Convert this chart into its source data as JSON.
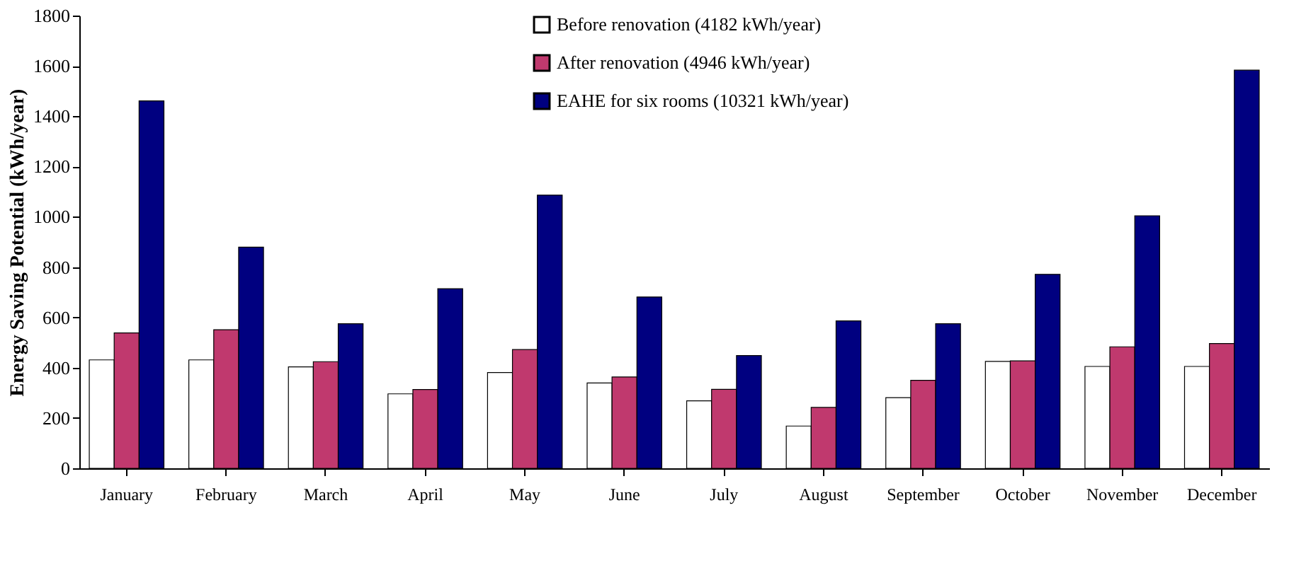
{
  "chart_data": {
    "type": "bar",
    "ylabel": "Energy Saving Potential (kWh/year)",
    "categories": [
      "January",
      "February",
      "March",
      "April",
      "May",
      "June",
      "July",
      "August",
      "September",
      "October",
      "November",
      "December"
    ],
    "series": [
      {
        "name": "Before renovation (4182 kWh/year)",
        "color": "#ffffff",
        "values": [
          431,
          431,
          403,
          296,
          381,
          339,
          268,
          168,
          281,
          425,
          405,
          405
        ]
      },
      {
        "name": "After renovation (4946 kWh/year)",
        "color": "#c0396e",
        "values": [
          538,
          551,
          424,
          313,
          472,
          363,
          314,
          242,
          350,
          427,
          483,
          496
        ]
      },
      {
        "name": "EAHE for six rooms (10321 kWh/year)",
        "color": "#000080",
        "values": [
          1461,
          879,
          575,
          714,
          1086,
          681,
          448,
          586,
          575,
          771,
          1004,
          1583
        ]
      }
    ],
    "ylim": [
      0,
      1800
    ],
    "yticks": [
      0,
      200,
      400,
      600,
      800,
      1000,
      1200,
      1400,
      1600,
      1800
    ],
    "grid": false,
    "legend": "top"
  }
}
